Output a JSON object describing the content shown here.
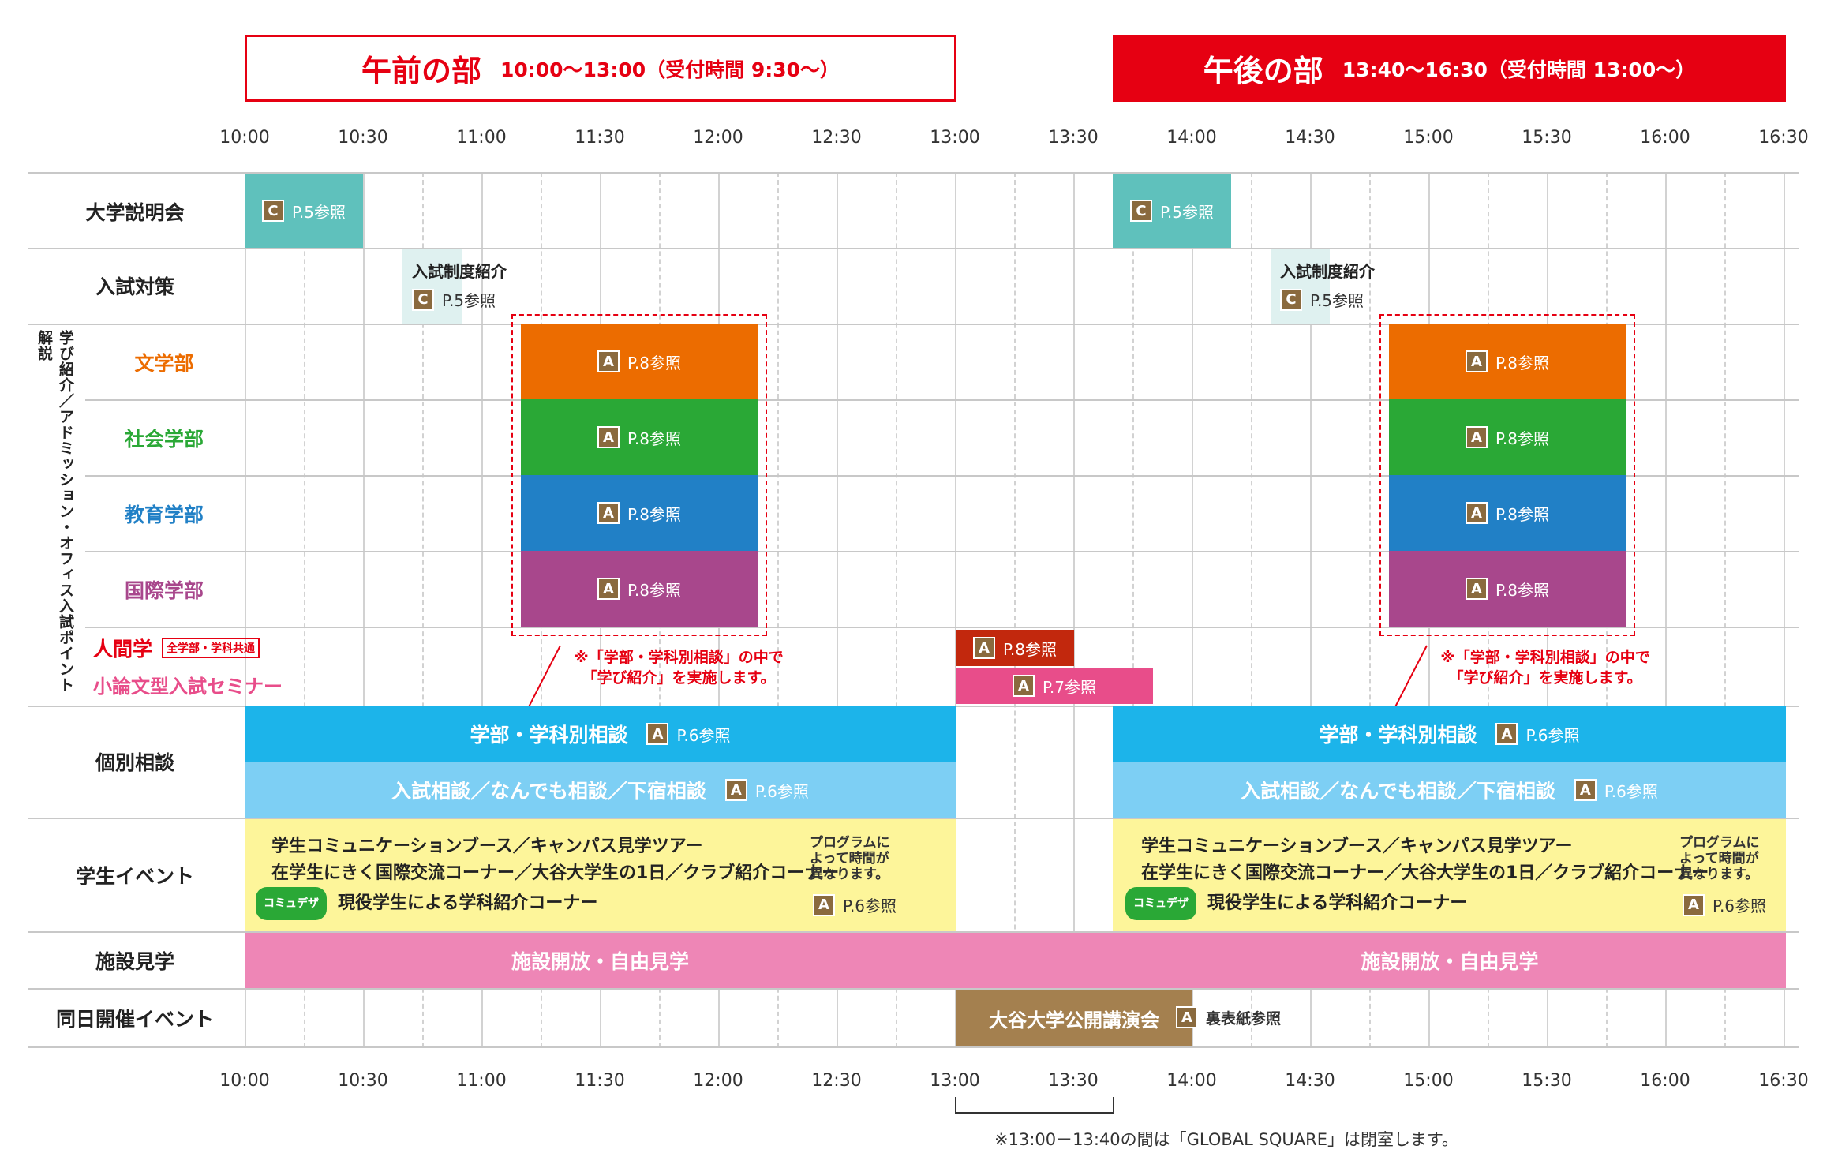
{
  "headers": {
    "morning": {
      "title": "午前の部",
      "time": "10:00〜13:00（受付時間 9:30〜）"
    },
    "afternoon": {
      "title": "午後の部",
      "time": "13:40〜16:30（受付時間 13:00〜）"
    }
  },
  "time_ticks": [
    "10:00",
    "10:30",
    "11:00",
    "11:30",
    "12:00",
    "12:30",
    "13:00",
    "13:30",
    "14:00",
    "14:30",
    "15:00",
    "15:30",
    "16:00",
    "16:30"
  ],
  "rows": {
    "setsumeikai": "大学説明会",
    "nyushi_taisaku": "入試対策",
    "bungakubu": "文学部",
    "shakai": "社会学部",
    "kyoiku": "教育学部",
    "kokusai": "国際学部",
    "ningengaku": "人間学",
    "ningengaku_tag": "全学部・学科共通",
    "shoronbun": "小論文型入試セミナー",
    "kobetsu": "個別相談",
    "gakusei": "学生イベント",
    "shisetsu": "施設見学",
    "doujitsu": "同日開催イベント",
    "vertical_group": "学び紹介／アドミッション・オフィス入試ポイント解説"
  },
  "colors": {
    "teal": "#5fc1bc",
    "teal_light": "#dff1f0",
    "orange": "#ec6c00",
    "green": "#2aa836",
    "blue": "#2180c6",
    "purple": "#a8478c",
    "dark_red": "#c2280d",
    "pink": "#e84d8a",
    "cyan": "#1cb4ea",
    "cyan_light": "#7dcff4",
    "yellow": "#fdf59a",
    "light_pink": "#ee86b6",
    "brown": "#a4804f",
    "red": "#e60012",
    "badge_brown": "#8a6a3e",
    "comyudeza_green": "#2aa836"
  },
  "badges": {
    "a": "A",
    "c": "C"
  },
  "refs": {
    "p5": "P.5参照",
    "p6": "P.6参照",
    "p7": "P.7参照",
    "p8": "P.8参照",
    "ura": "裏表紙参照"
  },
  "texts": {
    "nyushi_seido": "入試制度紹介",
    "note_gakubu": "※「学部・学科別相談」の中で\n「学び紹介」を実施します。",
    "gakubu_soudan": "学部・学科別相談",
    "nyushi_soudan": "入試相談／なんでも相談／下宿相談",
    "event_line1": "学生コミュニケーションブース／キャンパス見学ツアー",
    "event_line2": "在学生にきく国際交流コーナー／大谷大学生の1日／クラブ紹介コーナー",
    "event_line3": "現役学生による学科紹介コーナー",
    "comyudeza": "コミュデザ",
    "program_note": "プログラムに\nよって時間が\n異なります。",
    "shisetsu_kaiho": "施設開放・自由見学",
    "koukai_kouen": "大谷大学公開講演会",
    "closed_note": "※13:00－13:40の間は「GLOBAL SQUARE」は閉室します。"
  }
}
